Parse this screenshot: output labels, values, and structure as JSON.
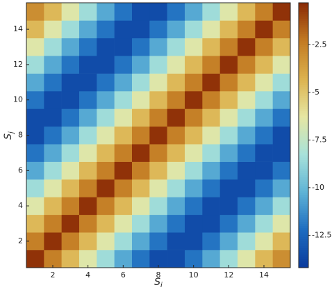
{
  "chart_data": {
    "type": "heatmap",
    "xlabel": "S",
    "xlabel_sub": "i",
    "ylabel": "S",
    "ylabel_sub": "j",
    "x": [
      1,
      2,
      3,
      4,
      5,
      6,
      7,
      8,
      9,
      10,
      11,
      12,
      13,
      14,
      15
    ],
    "y": [
      1,
      2,
      3,
      4,
      5,
      6,
      7,
      8,
      9,
      10,
      11,
      12,
      13,
      14,
      15
    ],
    "z": [
      [
        -0.5,
        -2.5,
        -4.5,
        -6.5,
        -8.5,
        -10.5,
        -12,
        -13.5,
        -13.5,
        -12,
        -10.5,
        -8.5,
        -6.5,
        -4.5,
        -3
      ],
      [
        -2.5,
        -0.5,
        -2.5,
        -4.5,
        -6.5,
        -8.5,
        -10.5,
        -12,
        -13.5,
        -13.5,
        -12,
        -10.5,
        -8.5,
        -6.5,
        -4.5
      ],
      [
        -4.5,
        -2.5,
        -0.5,
        -2.5,
        -4.5,
        -6.5,
        -8.5,
        -10.5,
        -12,
        -13.5,
        -13.5,
        -12,
        -10.5,
        -8.5,
        -6.5
      ],
      [
        -6.5,
        -4.5,
        -2.5,
        -0.5,
        -2.5,
        -4.5,
        -6.5,
        -8.5,
        -10.5,
        -12,
        -13.5,
        -13.5,
        -12,
        -10.5,
        -8.5
      ],
      [
        -8.5,
        -6.5,
        -4.5,
        -2.5,
        -0.5,
        -2.5,
        -4.5,
        -6.5,
        -8.5,
        -10.5,
        -12,
        -13.5,
        -13.5,
        -12,
        -10.5
      ],
      [
        -10.5,
        -8.5,
        -6.5,
        -4.5,
        -2.5,
        -0.5,
        -2.5,
        -4.5,
        -6.5,
        -8.5,
        -10.5,
        -12,
        -13.5,
        -13.5,
        -12
      ],
      [
        -12,
        -10.5,
        -8.5,
        -6.5,
        -4.5,
        -2.5,
        -0.5,
        -2.5,
        -4.5,
        -6.5,
        -8.5,
        -10.5,
        -12,
        -13.5,
        -13.5
      ],
      [
        -13.5,
        -12,
        -10.5,
        -8.5,
        -6.5,
        -4.5,
        -2.5,
        -0.5,
        -2.5,
        -4.5,
        -6.5,
        -8.5,
        -10.5,
        -12,
        -13.5
      ],
      [
        -13.5,
        -13.5,
        -12,
        -10.5,
        -8.5,
        -6.5,
        -4.5,
        -2.5,
        -0.5,
        -2.5,
        -4.5,
        -6.5,
        -8.5,
        -10.5,
        -12
      ],
      [
        -12,
        -13.5,
        -13.5,
        -12,
        -10.5,
        -8.5,
        -6.5,
        -4.5,
        -2.5,
        -0.5,
        -2.5,
        -4.5,
        -6.5,
        -8.5,
        -10.5
      ],
      [
        -10.5,
        -12,
        -13.5,
        -13.5,
        -12,
        -10.5,
        -8.5,
        -6.5,
        -4.5,
        -2.5,
        -0.5,
        -2.5,
        -4.5,
        -6.5,
        -8.5
      ],
      [
        -8.5,
        -10.5,
        -12,
        -13.5,
        -13.5,
        -12,
        -10.5,
        -8.5,
        -6.5,
        -4.5,
        -2.5,
        -0.5,
        -2.5,
        -4.5,
        -6.5
      ],
      [
        -6.5,
        -8.5,
        -10.5,
        -12,
        -13.5,
        -13.5,
        -12,
        -10.5,
        -8.5,
        -6.5,
        -4.5,
        -2.5,
        -0.5,
        -2.5,
        -4.5
      ],
      [
        -4.5,
        -6.5,
        -8.5,
        -10.5,
        -12,
        -13.5,
        -13.5,
        -12,
        -10.5,
        -8.5,
        -6.5,
        -4.5,
        -2.5,
        -0.5,
        -2.5
      ],
      [
        -3,
        -4.5,
        -6.5,
        -8.5,
        -10.5,
        -12,
        -13.5,
        -13.5,
        -12,
        -10.5,
        -8.5,
        -6.5,
        -4.5,
        -2.5,
        -0.5
      ]
    ],
    "xlim": [
      0.5,
      15.5
    ],
    "ylim": [
      0.5,
      15.5
    ],
    "xticks": [
      2,
      4,
      6,
      8,
      10,
      12,
      14
    ],
    "yticks": [
      2,
      4,
      6,
      8,
      10,
      12,
      14
    ],
    "clim": [
      -14.2,
      -0.3
    ],
    "cticks": [
      -12.5,
      -10,
      -7.5,
      -5,
      -2.5
    ],
    "colormap": [
      "#0a3a9c",
      "#1d6cc0",
      "#5fb3d6",
      "#a8e2da",
      "#e6e6a2",
      "#dcb24e",
      "#c27a22",
      "#8a2a05"
    ]
  }
}
